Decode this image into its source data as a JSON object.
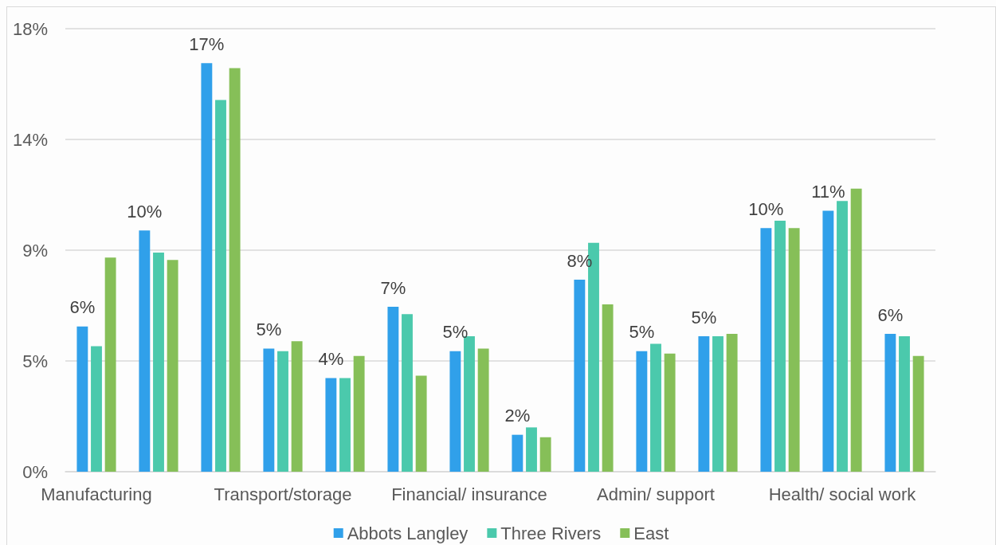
{
  "chart_data": {
    "type": "bar",
    "categories": [
      "Manufacturing",
      null,
      null,
      "Transport/storage",
      null,
      null,
      "Financial/ insurance",
      null,
      null,
      "Admin/ support",
      null,
      null,
      "Health/ social work",
      null
    ],
    "series": [
      {
        "name": "Abbots Langley",
        "color": "#30a0ea",
        "values": [
          5.9,
          9.8,
          16.6,
          5.0,
          3.8,
          6.7,
          4.9,
          1.5,
          7.8,
          4.9,
          5.5,
          9.9,
          10.6,
          5.6
        ],
        "value_labels": [
          "6%",
          "10%",
          "17%",
          "5%",
          "4%",
          "7%",
          "5%",
          "2%",
          "8%",
          "5%",
          "5%",
          "10%",
          "11%",
          "6%"
        ]
      },
      {
        "name": "Three Rivers",
        "color": "#4bc9ac",
        "values": [
          5.1,
          8.9,
          15.1,
          4.9,
          3.8,
          6.4,
          5.5,
          1.8,
          9.3,
          5.2,
          5.5,
          10.2,
          11.0,
          5.5
        ]
      },
      {
        "name": "East",
        "color": "#86bf58",
        "values": [
          8.7,
          8.6,
          16.4,
          5.3,
          4.7,
          3.9,
          5.0,
          1.4,
          6.8,
          4.8,
          5.6,
          9.9,
          11.5,
          4.7
        ]
      }
    ],
    "ylim": [
      0,
      18
    ],
    "yticks": [
      {
        "value": 0,
        "label": "0%"
      },
      {
        "value": 4.5,
        "label": "5%"
      },
      {
        "value": 9,
        "label": "9%"
      },
      {
        "value": 13.5,
        "label": "14%"
      },
      {
        "value": 18,
        "label": "18%"
      }
    ],
    "grid": "y",
    "legend": "bottom"
  }
}
